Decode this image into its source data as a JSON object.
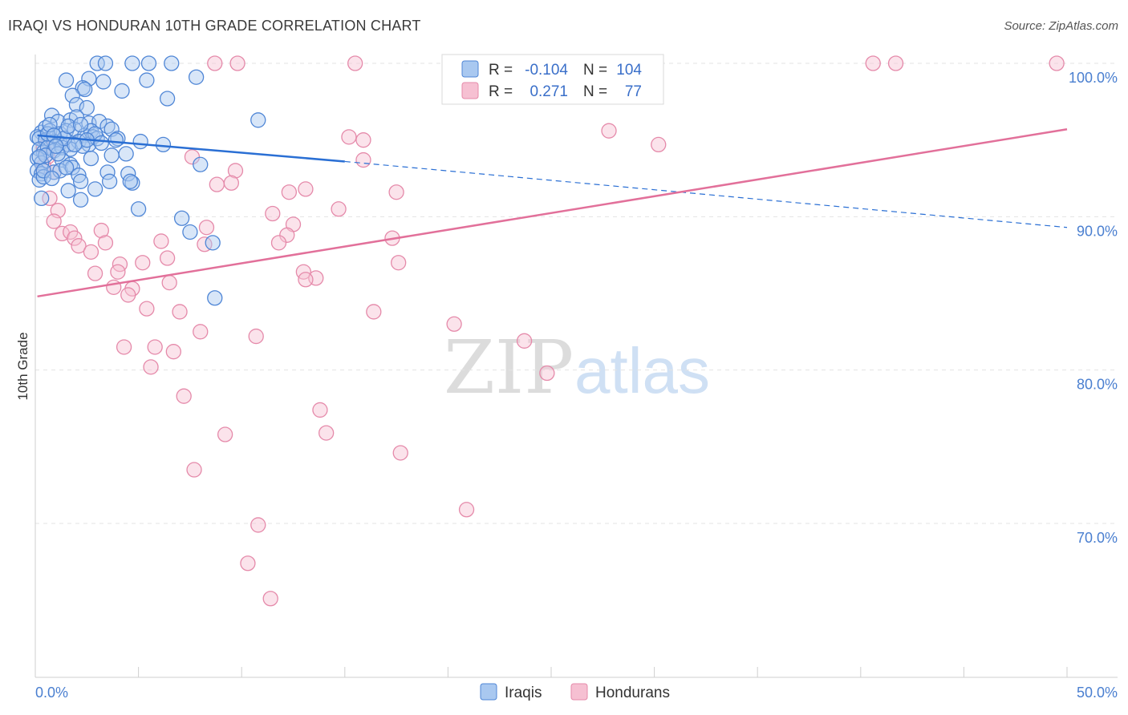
{
  "title": "IRAQI VS HONDURAN 10TH GRADE CORRELATION CHART",
  "source": "Source: ZipAtlas.com",
  "watermark": {
    "zip": "ZIP",
    "atlas": "atlas"
  },
  "colors": {
    "iraqi_fill": "#a9c8f0",
    "iraqi_stroke": "#4f86d6",
    "iraqi_line": "#2a6fd4",
    "honduran_fill": "#f6c0d2",
    "honduran_stroke": "#e58aaa",
    "honduran_line": "#e2709a",
    "tick_text": "#4a7fd0",
    "grid": "#e3e3e3"
  },
  "legend": {
    "rows": [
      {
        "r_label": "R =",
        "r_value": "-0.104",
        "n_label": "N =",
        "n_value": "104"
      },
      {
        "r_label": "R =",
        "r_value": "0.271",
        "n_label": "N =",
        "n_value": "77"
      }
    ]
  },
  "chart_data": {
    "type": "scatter",
    "title": "IRAQI VS HONDURAN 10TH GRADE CORRELATION CHART",
    "xlabel": "",
    "ylabel": "10th Grade",
    "xlim": [
      0,
      50
    ],
    "ylim": [
      62,
      100.7
    ],
    "x_tick_labels": [
      "0.0%",
      "50.0%"
    ],
    "y_ticks": [
      100,
      90,
      80,
      70
    ],
    "y_tick_labels": [
      "100.0%",
      "90.0%",
      "80.0%",
      "70.0%"
    ],
    "grid": true,
    "legend_position": "top-center",
    "series": [
      {
        "name": "Iraqis",
        "r": -0.104,
        "n": 104,
        "trend": {
          "x0": 0.1,
          "y0": 95.3,
          "x1": 15,
          "y1": 93.6,
          "dashed_to_x": 50,
          "dashed_to_y": 89.3
        },
        "points": [
          [
            3,
            100
          ],
          [
            3.4,
            100
          ],
          [
            4.7,
            100
          ],
          [
            5.5,
            100
          ],
          [
            6.6,
            100
          ],
          [
            1.5,
            98.9
          ],
          [
            2.6,
            99
          ],
          [
            3.3,
            98.8
          ],
          [
            7.8,
            99.1
          ],
          [
            2.3,
            98.4
          ],
          [
            2.4,
            98.3
          ],
          [
            4.2,
            98.2
          ],
          [
            1.8,
            97.9
          ],
          [
            2,
            97.3
          ],
          [
            2.5,
            97.1
          ],
          [
            6.4,
            97.7
          ],
          [
            5.4,
            98.9
          ],
          [
            0.8,
            96.6
          ],
          [
            1.1,
            96.2
          ],
          [
            1.7,
            96.3
          ],
          [
            2,
            96.5
          ],
          [
            2.6,
            96.1
          ],
          [
            3.1,
            96.2
          ],
          [
            3.5,
            95.9
          ],
          [
            10.8,
            96.3
          ],
          [
            0.3,
            95.5
          ],
          [
            0.5,
            95.8
          ],
          [
            0.7,
            95.6
          ],
          [
            1.2,
            95.4
          ],
          [
            1.5,
            95.6
          ],
          [
            1.9,
            95.7
          ],
          [
            2.4,
            95.3
          ],
          [
            2.7,
            95.6
          ],
          [
            2.8,
            95.2
          ],
          [
            3.7,
            95.7
          ],
          [
            0.1,
            95.2
          ],
          [
            0.2,
            95.1
          ],
          [
            0.5,
            95
          ],
          [
            0.9,
            94.9
          ],
          [
            1.2,
            94.8
          ],
          [
            1.6,
            94.7
          ],
          [
            2.1,
            94.9
          ],
          [
            2.6,
            94.7
          ],
          [
            3,
            95.1
          ],
          [
            4,
            95.1
          ],
          [
            5.1,
            94.9
          ],
          [
            6.2,
            94.7
          ],
          [
            0.2,
            94.4
          ],
          [
            0.4,
            94.2
          ],
          [
            0.6,
            94.5
          ],
          [
            0.9,
            94.3
          ],
          [
            1.3,
            94.5
          ],
          [
            1.7,
            94.4
          ],
          [
            2.3,
            94.6
          ],
          [
            0.1,
            93.8
          ],
          [
            0.3,
            93.5
          ],
          [
            1.3,
            93.7
          ],
          [
            1.7,
            93.4
          ],
          [
            3.7,
            94
          ],
          [
            4.4,
            94.1
          ],
          [
            8,
            93.4
          ],
          [
            0.1,
            93
          ],
          [
            0.3,
            92.8
          ],
          [
            0.9,
            92.9
          ],
          [
            1.2,
            93
          ],
          [
            1.8,
            93.2
          ],
          [
            2.1,
            92.7
          ],
          [
            3.5,
            92.9
          ],
          [
            4.5,
            92.8
          ],
          [
            0.2,
            92.4
          ],
          [
            0.4,
            92.6
          ],
          [
            2.2,
            92.3
          ],
          [
            3.6,
            92.3
          ],
          [
            4.7,
            92.2
          ],
          [
            1.6,
            91.7
          ],
          [
            2.9,
            91.8
          ],
          [
            0.3,
            91.2
          ],
          [
            2.2,
            91.1
          ],
          [
            5,
            90.5
          ],
          [
            7.1,
            89.9
          ],
          [
            7.5,
            89
          ],
          [
            8.6,
            88.3
          ],
          [
            8.7,
            84.7
          ],
          [
            0.6,
            95.4
          ],
          [
            1.4,
            95.1
          ],
          [
            2.9,
            95.4
          ],
          [
            3.9,
            95
          ],
          [
            0.5,
            94
          ],
          [
            1.1,
            94.1
          ],
          [
            2.5,
            95
          ],
          [
            0.4,
            93
          ],
          [
            1.9,
            94.7
          ],
          [
            3.2,
            94.8
          ],
          [
            0.7,
            96
          ],
          [
            1.6,
            95.9
          ],
          [
            2.2,
            96
          ],
          [
            0.9,
            95.3
          ],
          [
            1.5,
            93.2
          ],
          [
            2.7,
            93.8
          ],
          [
            4.6,
            92.3
          ],
          [
            0.8,
            92.5
          ],
          [
            0.2,
            93.9
          ],
          [
            1,
            94.6
          ]
        ]
      },
      {
        "name": "Hondurans",
        "r": 0.271,
        "n": 77,
        "trend": {
          "x0": 0.1,
          "y0": 84.8,
          "x1": 50,
          "y1": 95.7
        },
        "points": [
          [
            8.7,
            100
          ],
          [
            9.8,
            100
          ],
          [
            15.5,
            100
          ],
          [
            28.7,
            100
          ],
          [
            40.6,
            100
          ],
          [
            41.7,
            100
          ],
          [
            49.5,
            100
          ],
          [
            27.8,
            95.6
          ],
          [
            30.2,
            94.7
          ],
          [
            15.2,
            95.2
          ],
          [
            15.9,
            95
          ],
          [
            0.4,
            94.5
          ],
          [
            0.6,
            93.9
          ],
          [
            15.9,
            93.7
          ],
          [
            7.6,
            93.9
          ],
          [
            9.7,
            93
          ],
          [
            0.4,
            93.3
          ],
          [
            0.9,
            92.9
          ],
          [
            8.8,
            92.1
          ],
          [
            9.5,
            92.2
          ],
          [
            12.3,
            91.6
          ],
          [
            13.1,
            91.8
          ],
          [
            17.5,
            91.6
          ],
          [
            0.7,
            91.2
          ],
          [
            14.7,
            90.5
          ],
          [
            11.5,
            90.2
          ],
          [
            1.1,
            90.4
          ],
          [
            0.9,
            89.7
          ],
          [
            1.3,
            88.9
          ],
          [
            1.7,
            89
          ],
          [
            3.2,
            89.1
          ],
          [
            8.3,
            89.3
          ],
          [
            12.5,
            89.5
          ],
          [
            12.2,
            88.8
          ],
          [
            11.8,
            88.3
          ],
          [
            1.9,
            88.6
          ],
          [
            2.1,
            88.1
          ],
          [
            3.4,
            88.3
          ],
          [
            6.1,
            88.4
          ],
          [
            8.2,
            88.2
          ],
          [
            17.3,
            88.6
          ],
          [
            2.7,
            87.7
          ],
          [
            6.4,
            87.3
          ],
          [
            4.1,
            86.9
          ],
          [
            5.2,
            87
          ],
          [
            17.6,
            87
          ],
          [
            2.9,
            86.3
          ],
          [
            4,
            86.4
          ],
          [
            13,
            86.4
          ],
          [
            13.6,
            86
          ],
          [
            13.1,
            85.9
          ],
          [
            6.5,
            85.7
          ],
          [
            3.8,
            85.4
          ],
          [
            4.7,
            85.3
          ],
          [
            4.5,
            84.9
          ],
          [
            5.4,
            84
          ],
          [
            7,
            83.8
          ],
          [
            16.4,
            83.8
          ],
          [
            20.3,
            83
          ],
          [
            8,
            82.5
          ],
          [
            10.7,
            82.2
          ],
          [
            23.7,
            81.9
          ],
          [
            4.3,
            81.5
          ],
          [
            5.8,
            81.5
          ],
          [
            6.7,
            81.2
          ],
          [
            5.6,
            80.2
          ],
          [
            24.8,
            79.8
          ],
          [
            7.2,
            78.3
          ],
          [
            13.8,
            77.4
          ],
          [
            9.2,
            75.8
          ],
          [
            14.1,
            75.9
          ],
          [
            17.7,
            74.6
          ],
          [
            7.7,
            73.5
          ],
          [
            20.9,
            70.9
          ],
          [
            10.8,
            69.9
          ],
          [
            10.3,
            67.4
          ],
          [
            11.4,
            65.1
          ]
        ]
      }
    ]
  }
}
